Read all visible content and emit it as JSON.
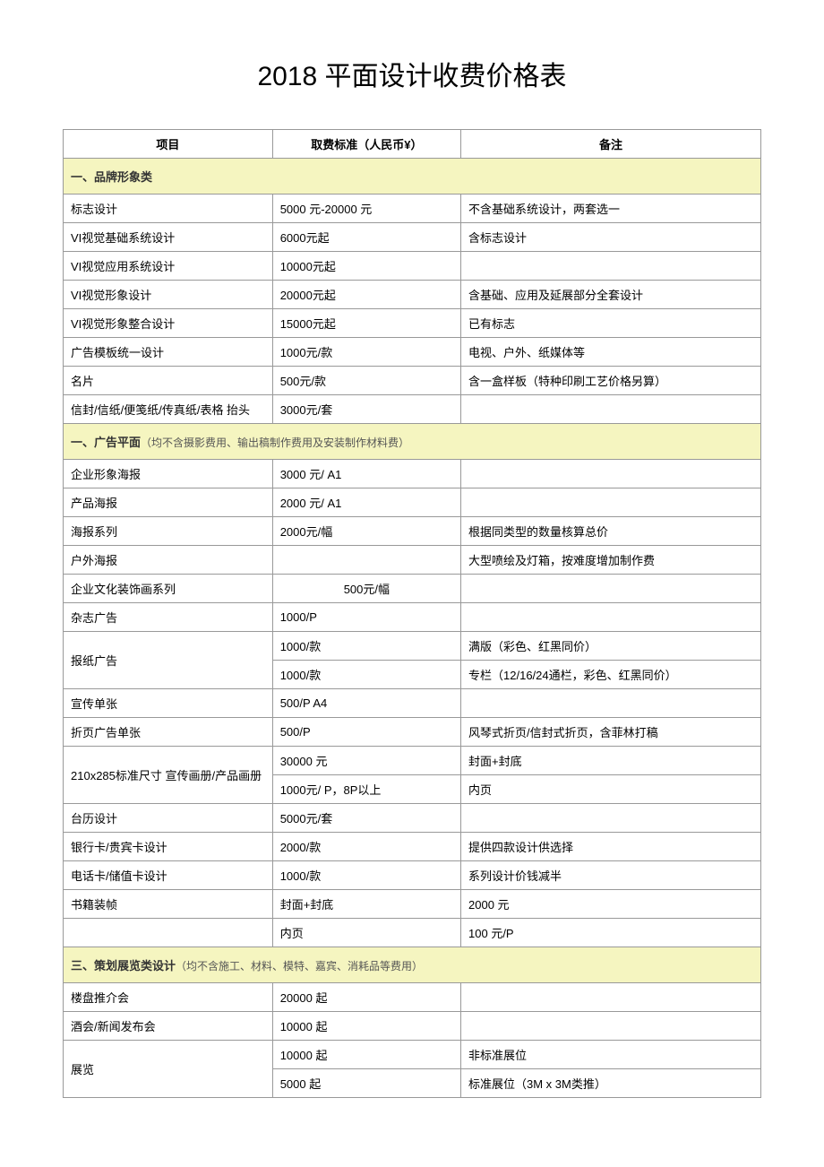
{
  "title": "2018 平面设计收费价格表",
  "headers": {
    "item": "项目",
    "price": "取费标准（人民币¥）",
    "remark": "备注"
  },
  "sections": [
    {
      "title": "一、品牌形象类",
      "note": "",
      "rows": [
        {
          "item": "标志设计",
          "price": "5000 元-20000 元",
          "remark": "不含基础系统设计，两套选一"
        },
        {
          "item": "VI视觉基础系统设计",
          "price": "6000元起",
          "remark": "含标志设计"
        },
        {
          "item": "VI视觉应用系统设计",
          "price": "10000元起",
          "remark": ""
        },
        {
          "item": "VI视觉形象设计",
          "price": "20000元起",
          "remark": "含基础、应用及延展部分全套设计"
        },
        {
          "item": "VI视觉形象整合设计",
          "price": "15000元起",
          "remark": "已有标志"
        },
        {
          "item": "广告模板统一设计",
          "price": "1000元/款",
          "remark": "电视、户外、纸媒体等"
        },
        {
          "item": "名片",
          "price": "500元/款",
          "remark": "含一盒样板（特种印刷工艺价格另算）"
        },
        {
          "item": "信封/信纸/便笺纸/传真纸/表格 抬头",
          "price": "3000元/套",
          "remark": ""
        }
      ]
    },
    {
      "title": "一、广告平面",
      "note": "（均不含摄影费用、输出稿制作费用及安装制作材料费）",
      "rows": [
        {
          "item": "企业形象海报",
          "price": "3000 元/ A1",
          "remark": ""
        },
        {
          "item": "产品海报",
          "price": "2000 元/ A1",
          "remark": ""
        },
        {
          "item": "海报系列",
          "price": "2000元/幅",
          "remark": "根据同类型的数量核算总价"
        },
        {
          "item": "户外海报",
          "price": "",
          "remark": "大型喷绘及灯箱，按难度增加制作费"
        },
        {
          "item": "企业文化装饰画系列",
          "price": "500元/幅",
          "price_center": true,
          "remark": ""
        },
        {
          "item": "杂志广告",
          "price": "1000/P",
          "remark": ""
        },
        {
          "item": "报纸广告",
          "rowspan": 2,
          "price": "1000/款",
          "remark": "满版（彩色、红黑同价）"
        },
        {
          "item": "",
          "skip_item": true,
          "price": "1000/款",
          "remark": "专栏（12/16/24通栏，彩色、红黑同价）"
        },
        {
          "item": "宣传单张",
          "price": "500/P A4",
          "remark": ""
        },
        {
          "item": "折页广告单张",
          "price": "500/P",
          "remark": "风琴式折页/信封式折页，含菲林打稿"
        },
        {
          "item": "210x285标准尺寸 宣传画册/产品画册",
          "rowspan": 2,
          "price": "30000 元",
          "remark": "封面+封底"
        },
        {
          "item": "",
          "skip_item": true,
          "price": "1000元/ P，8P以上",
          "remark": "内页"
        },
        {
          "item": "台历设计",
          "price": "5000元/套",
          "remark": ""
        },
        {
          "item": "银行卡/贵宾卡设计",
          "price": "2000/款",
          "remark": "提供四款设计供选择"
        },
        {
          "item": "电话卡/储值卡设计",
          "price": "1000/款",
          "remark": "系列设计价钱减半"
        },
        {
          "item": "书籍装帧",
          "price": "封面+封底",
          "remark": "2000 元"
        },
        {
          "item": "",
          "price": "内页",
          "remark": "100 元/P"
        }
      ]
    },
    {
      "title": "三、策划展览类设计",
      "note": "（均不含施工、材料、模特、嘉宾、消耗品等费用）",
      "rows": [
        {
          "item": "楼盘推介会",
          "price": "20000 起",
          "remark": ""
        },
        {
          "item": "酒会/新闻发布会",
          "price": "10000 起",
          "remark": ""
        },
        {
          "item": "展览",
          "rowspan": 2,
          "price": "10000 起",
          "remark": "非标准展位"
        },
        {
          "item": "",
          "skip_item": true,
          "price": "5000 起",
          "remark": "标准展位（3M x 3M类推）"
        }
      ]
    }
  ]
}
